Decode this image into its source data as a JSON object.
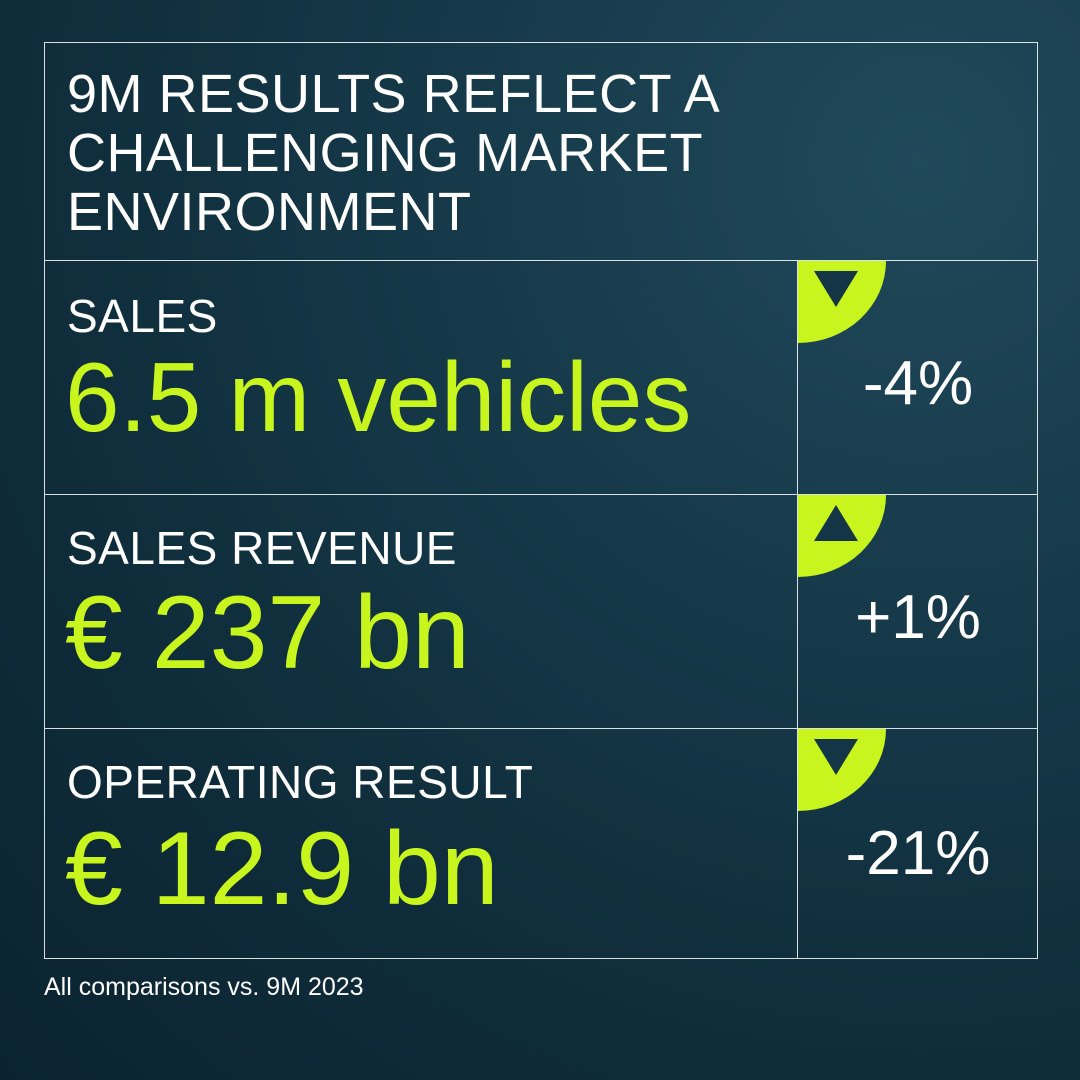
{
  "headline": {
    "lines": [
      "9M RESULTS REFLECT A",
      "CHALLENGING MARKET",
      "ENVIRONMENT"
    ]
  },
  "metrics": [
    {
      "label": "SALES",
      "value": "6.5 m vehicles",
      "change": "-4%",
      "direction": "down",
      "direction_icon": "triangle-down-icon"
    },
    {
      "label": "SALES REVENUE",
      "value": "€ 237 bn",
      "change": "+1%",
      "direction": "up",
      "direction_icon": "triangle-up-icon"
    },
    {
      "label": "OPERATING RESULT",
      "value": "€ 12.9 bn",
      "change": "-21%",
      "direction": "down",
      "direction_icon": "triangle-down-icon"
    }
  ],
  "footnote": "All comparisons vs. 9M 2023",
  "colors": {
    "accent": "#c8f51e",
    "background": "#163a4a",
    "text": "#ffffff",
    "triangle": "#133545"
  }
}
